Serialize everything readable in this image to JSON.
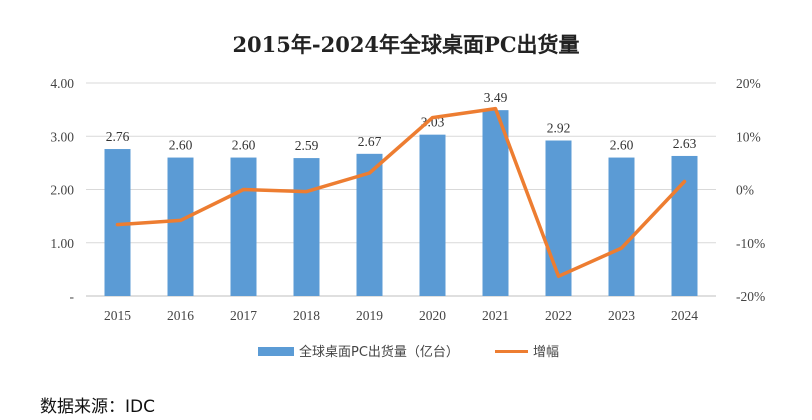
{
  "chart_data": {
    "type": "bar",
    "title": "2015年-2024年全球桌面PC出货量",
    "categories": [
      "2015",
      "2016",
      "2017",
      "2018",
      "2019",
      "2020",
      "2021",
      "2022",
      "2023",
      "2024"
    ],
    "series": [
      {
        "name": "全球桌面PC出货量（亿台）",
        "type": "bar",
        "axis": "left",
        "values": [
          2.76,
          2.6,
          2.6,
          2.59,
          2.67,
          3.03,
          3.49,
          2.92,
          2.6,
          2.63
        ],
        "labels": [
          "2.76",
          "2.60",
          "2.60",
          "2.59",
          "2.67",
          "3.03",
          "3.49",
          "2.92",
          "2.60",
          "2.63"
        ],
        "color": "#5B9BD5"
      },
      {
        "name": "增幅",
        "type": "line",
        "axis": "right",
        "values": [
          -6.6,
          -5.8,
          0.0,
          -0.4,
          3.1,
          13.5,
          15.2,
          -16.3,
          -11.0,
          1.5
        ],
        "color": "#ED7D31"
      }
    ],
    "left_axis": {
      "ylim": [
        0,
        4
      ],
      "ticks": [
        "-",
        "1.00",
        "2.00",
        "3.00",
        "4.00"
      ]
    },
    "right_axis": {
      "ylim": [
        -20,
        20
      ],
      "ticks": [
        "-20%",
        "-10%",
        "0%",
        "10%",
        "20%"
      ]
    },
    "grid": true,
    "legend": "bottom"
  },
  "source": "数据来源：IDC"
}
